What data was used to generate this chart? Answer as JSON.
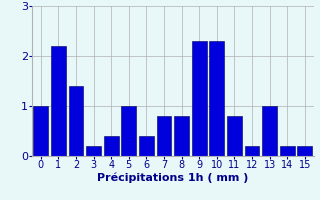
{
  "categories": [
    0,
    1,
    2,
    3,
    4,
    5,
    6,
    7,
    8,
    9,
    10,
    11,
    12,
    13,
    14,
    15
  ],
  "values": [
    1.0,
    2.2,
    1.4,
    0.2,
    0.4,
    1.0,
    0.4,
    0.8,
    0.8,
    2.3,
    2.3,
    0.8,
    0.2,
    1.0,
    0.2,
    0.2
  ],
  "bar_color": "#0000dd",
  "bar_edge_color": "#000055",
  "background_color": "#e8f8f8",
  "grid_color": "#b0b0b0",
  "xlabel": "Précipitations 1h ( mm )",
  "xlabel_color": "#00008b",
  "tick_color": "#00008b",
  "ylim": [
    0,
    3
  ],
  "yticks": [
    0,
    1,
    2,
    3
  ],
  "bar_width": 0.85,
  "tick_fontsize": 7,
  "label_fontsize": 8
}
